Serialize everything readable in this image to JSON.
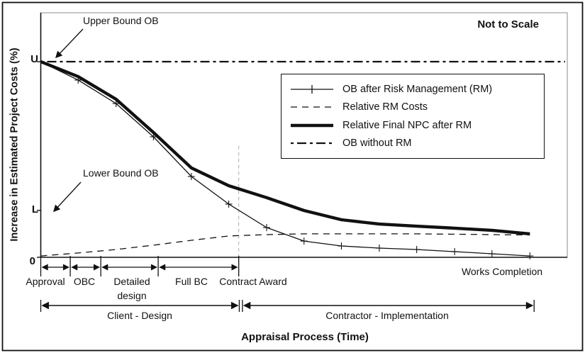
{
  "figure": {
    "note": "Not to Scale"
  },
  "annotations": {
    "upper_bound": "Upper Bound OB",
    "lower_bound": "Lower Bound OB"
  },
  "chart_data": {
    "type": "line",
    "title": "",
    "xlabel": "Appraisal Process (Time)",
    "ylabel": "Increase in Estimated Project Costs (%)",
    "x_unit": "percent of timeline (0 = Approval start, 100 = right edge of plot)",
    "y_unit": "percent of Upper Bound OB (U = 100)",
    "xlim": [
      0,
      100
    ],
    "ylim": [
      0,
      125
    ],
    "grid": false,
    "legend_position": "upper right (framed box inside plot)",
    "y_markers": [
      {
        "label": "U",
        "value": 100
      },
      {
        "label": "L",
        "value": 24
      },
      {
        "label": "0",
        "value": 0
      }
    ],
    "reference_line": {
      "name": "contract-award-vertical-dashed",
      "x": 37.6,
      "v_top": 57
    },
    "series": [
      {
        "key": "ob-after-rm",
        "name": "OB after Risk Management (RM)",
        "style": "thin-plus",
        "marker": "plus",
        "points": [
          [
            0,
            100
          ],
          [
            7.1,
            90.6
          ],
          [
            14.3,
            78.6
          ],
          [
            21.4,
            61.6
          ],
          [
            28.6,
            41.3
          ],
          [
            35.7,
            27.2
          ],
          [
            42.9,
            15.2
          ],
          [
            50,
            8.3
          ],
          [
            57.1,
            5.8
          ],
          [
            64.3,
            4.7
          ],
          [
            71.4,
            4.0
          ],
          [
            78.6,
            2.9
          ],
          [
            85.7,
            1.8
          ],
          [
            92.9,
            0.7
          ]
        ]
      },
      {
        "key": "rm-costs",
        "name": "Relative RM Costs",
        "style": "dashed",
        "marker": "none",
        "points": [
          [
            0,
            0.7
          ],
          [
            7.1,
            2.2
          ],
          [
            14.3,
            4.0
          ],
          [
            21.4,
            6.2
          ],
          [
            28.6,
            8.7
          ],
          [
            35.7,
            10.9
          ],
          [
            42.9,
            11.6
          ],
          [
            50,
            12.0
          ],
          [
            57.1,
            12.0
          ],
          [
            64.3,
            12.0
          ],
          [
            71.4,
            12.0
          ],
          [
            78.6,
            11.8
          ],
          [
            85.7,
            11.6
          ],
          [
            92.9,
            11.4
          ]
        ]
      },
      {
        "key": "npc-after-rm",
        "name": "Relative Final NPC after RM",
        "style": "thick",
        "marker": "none",
        "points": [
          [
            0,
            100
          ],
          [
            7.1,
            92.4
          ],
          [
            14.3,
            80.8
          ],
          [
            21.4,
            63.8
          ],
          [
            28.6,
            45.7
          ],
          [
            35.7,
            36.6
          ],
          [
            42.9,
            30.5
          ],
          [
            50,
            23.9
          ],
          [
            57.1,
            19.2
          ],
          [
            64.3,
            17.0
          ],
          [
            71.4,
            15.9
          ],
          [
            78.6,
            14.9
          ],
          [
            85.7,
            13.8
          ],
          [
            92.9,
            12.0
          ]
        ]
      },
      {
        "key": "ob-without-rm",
        "name": "OB without RM",
        "style": "dashdot",
        "marker": "none",
        "points": [
          [
            0,
            100
          ],
          [
            99.6,
            100
          ]
        ]
      }
    ]
  },
  "timeline": {
    "phases": [
      {
        "label": "Approval",
        "start": 0,
        "end": 5.6
      },
      {
        "label": "OBC",
        "start": 5.6,
        "end": 11.4
      },
      {
        "label": "Detailed design",
        "start": 11.4,
        "end": 22.3
      },
      {
        "label": "Full BC",
        "start": 22.3,
        "end": 37.6
      }
    ],
    "milestones": [
      {
        "label": "Contract Award",
        "x": 37.6
      },
      {
        "label": "Works Completion",
        "x": 92.9
      }
    ],
    "spans": [
      {
        "label": "Client - Design",
        "start": 0,
        "end": 37.7
      },
      {
        "label": "Contractor - Implementation",
        "start": 38.3,
        "end": 93.7
      }
    ]
  },
  "colors": {
    "ink": "#111111",
    "plot_border": "#8c8c8c",
    "reference_line": "#b3b3b3",
    "background": "#ffffff"
  }
}
